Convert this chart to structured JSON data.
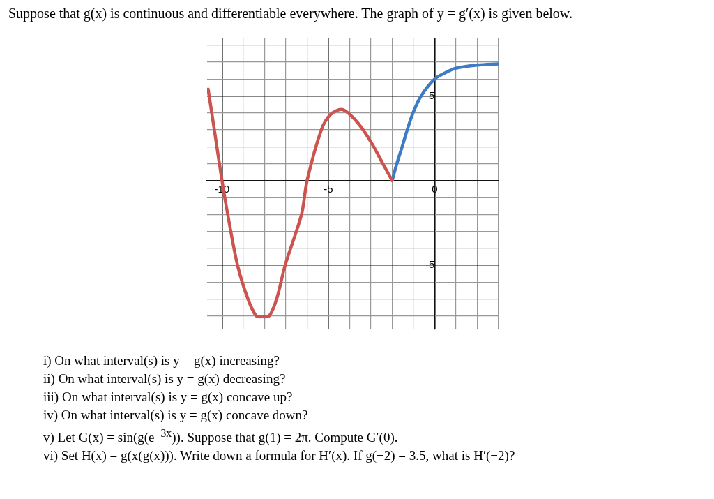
{
  "chart_data": {
    "type": "line",
    "title": "Suppose that g(x) is continuous and differentiable everywhere. The graph of y = g′(x) is given below.",
    "annotations": [
      "i) On what interval(s) is y = g(x) increasing?",
      "ii) On what interval(s) is y = g(x) decreasing?",
      "iii) On what interval(s) is y = g(x) concave up?",
      "iv) On what interval(s) is y = g(x) concave down?",
      "v) Let G(x) = sin(g(e$^{−3x}$)). Suppose that g(1) = 2π. Compute G′(0).",
      "vi) Set H(x) = g(x(g(x))). Write down a formula for H′(x). If g(−2) = 3.5, what is H′(−2)?"
    ],
    "series": [
      {
        "color": "#cc5450",
        "x": [
          -10.65,
          -10.36,
          -10.0,
          -9.73,
          -9.27,
          -8.78,
          -8.39,
          -8.1,
          -7.78,
          -7.43,
          -7.03,
          -6.26,
          -6.0,
          -5.33,
          -4.9,
          -4.37,
          -3.9,
          -3.37,
          -2.87,
          -2.44,
          -2.0
        ],
        "values": [
          5.4,
          3,
          0,
          -2,
          -5,
          -7,
          -8,
          -8.05,
          -8,
          -7,
          -5,
          -2,
          0,
          3,
          3.9,
          4.2,
          3.8,
          3,
          2,
          1,
          0
        ]
      },
      {
        "color": "#3d7cc2",
        "x": [
          -2.0,
          -1.78,
          -1.53,
          -1.29,
          -1.02,
          -0.64,
          0.0,
          0.5,
          1.0,
          2.0,
          3.0
        ],
        "values": [
          0,
          1,
          2,
          3,
          4,
          5,
          6,
          6.37,
          6.64,
          6.82,
          6.89
        ]
      }
    ],
    "xlim": [
      -10.7,
      3
    ],
    "ylim": [
      -8.8,
      8.4
    ],
    "xticks": [
      {
        "value": -10,
        "label": "-10"
      },
      {
        "value": -9,
        "label": null
      },
      {
        "value": -8,
        "label": null
      },
      {
        "value": -7,
        "label": null
      },
      {
        "value": -6,
        "label": null
      },
      {
        "value": -5,
        "label": "-5"
      },
      {
        "value": -4,
        "label": null
      },
      {
        "value": -3,
        "label": null
      },
      {
        "value": -2,
        "label": null
      },
      {
        "value": -1,
        "label": null
      },
      {
        "value": 0,
        "label": "0"
      },
      {
        "value": 1,
        "label": null
      },
      {
        "value": 2,
        "label": null
      },
      {
        "value": 3,
        "label": null
      }
    ],
    "yticks": [
      {
        "value": -8,
        "label": null
      },
      {
        "value": -7,
        "label": null
      },
      {
        "value": -6,
        "label": null
      },
      {
        "value": -5,
        "label": "-5"
      },
      {
        "value": -4,
        "label": null
      },
      {
        "value": -3,
        "label": null
      },
      {
        "value": -2,
        "label": null
      },
      {
        "value": -1,
        "label": null
      },
      {
        "value": 0,
        "label": null
      },
      {
        "value": 1,
        "label": null
      },
      {
        "value": 2,
        "label": null
      },
      {
        "value": 3,
        "label": null
      },
      {
        "value": 4,
        "label": null
      },
      {
        "value": 5,
        "label": "5"
      },
      {
        "value": 6,
        "label": null
      },
      {
        "value": 7,
        "label": null
      },
      {
        "value": 8,
        "label": null
      }
    ],
    "grid": true,
    "marker": "none",
    "line_style": "solid"
  }
}
